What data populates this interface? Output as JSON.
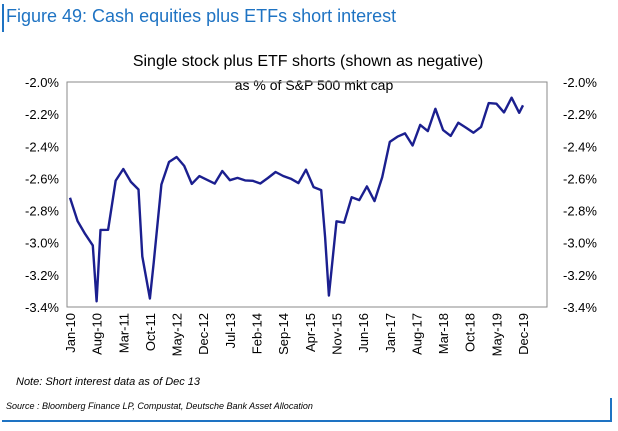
{
  "header": {
    "figure_title": "Figure 49: Cash equities plus ETFs short interest"
  },
  "note": "Note: Short interest data as of Dec 13",
  "source": "Source : Bloomberg Finance LP, Compustat, Deutsche Bank Asset Allocation",
  "colors": {
    "accent": "#1e73c3",
    "series": "#1b1f8f"
  },
  "chart_data": {
    "type": "line",
    "title": "Single stock plus ETF shorts (shown as negative)",
    "subtitle": "as % of S&P 500 mkt cap",
    "xlabel": "",
    "ylabel": "",
    "ylim": [
      -3.4,
      -2.0
    ],
    "yticks": [
      "-2.0%",
      "-2.2%",
      "-2.4%",
      "-2.6%",
      "-2.8%",
      "-3.0%",
      "-3.2%",
      "-3.4%"
    ],
    "ytick_values": [
      -2.0,
      -2.2,
      -2.4,
      -2.6,
      -2.8,
      -3.0,
      -3.2,
      -3.4
    ],
    "dual_y_axis": true,
    "grid": false,
    "xticks": [
      "Jan-10",
      "Aug-10",
      "Mar-11",
      "Oct-11",
      "May-12",
      "Dec-12",
      "Jul-13",
      "Feb-14",
      "Sep-14",
      "Apr-15",
      "Nov-15",
      "Jun-16",
      "Jan-17",
      "Aug-17",
      "Mar-18",
      "Oct-18",
      "May-19",
      "Dec-19"
    ],
    "series": [
      {
        "color": "#1b1f8f",
        "x": [
          "Jan-10",
          "Mar-10",
          "May-10",
          "Jul-10",
          "Aug-10",
          "Sep-10",
          "Nov-10",
          "Jan-11",
          "Mar-11",
          "May-11",
          "Jul-11",
          "Aug-11",
          "Oct-11",
          "Nov-11",
          "Jan-12",
          "Mar-12",
          "May-12",
          "Jul-12",
          "Sep-12",
          "Nov-12",
          "Jan-13",
          "Mar-13",
          "May-13",
          "Jul-13",
          "Sep-13",
          "Nov-13",
          "Jan-14",
          "Mar-14",
          "May-14",
          "Jul-14",
          "Sep-14",
          "Nov-14",
          "Jan-15",
          "Mar-15",
          "May-15",
          "Jul-15",
          "Aug-15",
          "Sep-15",
          "Nov-15",
          "Jan-16",
          "Mar-16",
          "May-16",
          "Jul-16",
          "Sep-16",
          "Nov-16",
          "Jan-17",
          "Mar-17",
          "May-17",
          "Jul-17",
          "Sep-17",
          "Nov-17",
          "Jan-18",
          "Mar-18",
          "May-18",
          "Jul-18",
          "Sep-18",
          "Nov-18",
          "Jan-19",
          "Mar-19",
          "May-19",
          "Jul-19",
          "Sep-19",
          "Nov-19",
          "Dec-19"
        ],
        "values": [
          -2.72,
          -2.88,
          -2.92,
          -3.05,
          -3.33,
          -2.95,
          -2.9,
          -2.62,
          -2.55,
          -2.6,
          -2.7,
          -3.05,
          -3.38,
          -3.1,
          -2.65,
          -2.5,
          -2.45,
          -2.55,
          -2.6,
          -2.62,
          -2.58,
          -2.65,
          -2.55,
          -2.6,
          -2.62,
          -2.58,
          -2.65,
          -2.6,
          -2.62,
          -2.55,
          -2.58,
          -2.62,
          -2.6,
          -2.58,
          -2.62,
          -2.7,
          -2.95,
          -3.33,
          -2.88,
          -2.85,
          -2.75,
          -2.7,
          -2.68,
          -2.72,
          -2.6,
          -2.38,
          -2.32,
          -2.35,
          -2.36,
          -2.3,
          -2.28,
          -2.18,
          -2.3,
          -2.32,
          -2.28,
          -2.25,
          -2.35,
          -2.25,
          -2.15,
          -2.13,
          -2.18,
          -2.12,
          -2.16,
          -2.18
        ]
      }
    ]
  }
}
